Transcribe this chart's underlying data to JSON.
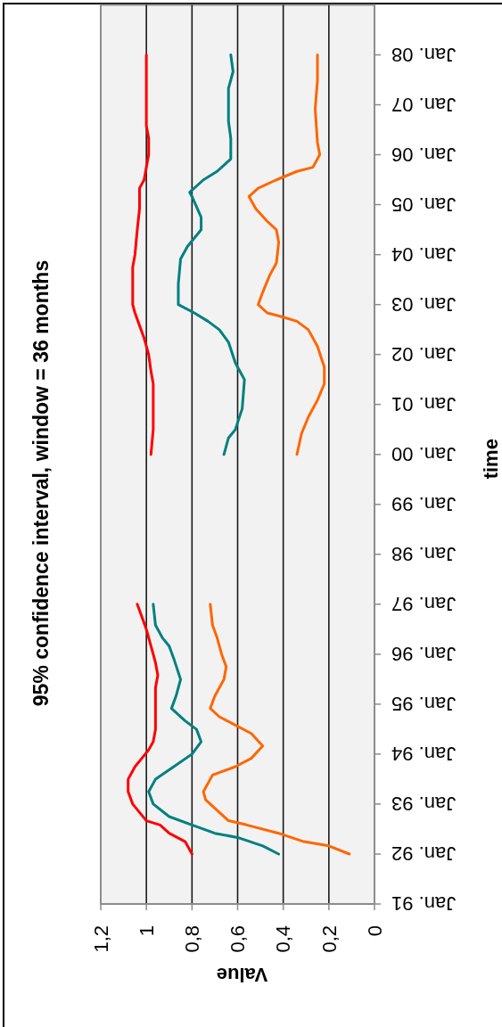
{
  "chart_data": {
    "type": "line",
    "orientation": "horizontal",
    "title": "95% confidence interval, window = 36 months",
    "xlabel": "Value",
    "ylabel": "time",
    "xlim": [
      1.2,
      0
    ],
    "xticks": [
      {
        "value": 1.2,
        "label": "1,2"
      },
      1,
      {
        "value": 0.8,
        "label": "0,8"
      },
      {
        "value": 0.6,
        "label": "0,6"
      },
      {
        "value": 0.4,
        "label": "0,4"
      },
      {
        "value": 0.2,
        "label": "0,2"
      },
      0
    ],
    "ylim": [
      "1991-01",
      "2009-01"
    ],
    "yticks": [
      {
        "value": "1991-01",
        "label": "Jan. 91"
      },
      {
        "value": "1992-01",
        "label": "Jan. 92"
      },
      {
        "value": "1993-01",
        "label": "Jan. 93"
      },
      {
        "value": "1994-01",
        "label": "Jan. 94"
      },
      {
        "value": "1995-01",
        "label": "Jan. 95"
      },
      {
        "value": "1996-01",
        "label": "Jan. 96"
      },
      {
        "value": "1997-01",
        "label": "Jan. 97"
      },
      {
        "value": "1998-01",
        "label": "Jan. 98"
      },
      {
        "value": "1999-01",
        "label": "Jan. 99"
      },
      {
        "value": "2000-01",
        "label": "Jan. 00"
      },
      {
        "value": "2001-01",
        "label": "Jan. 01"
      },
      {
        "value": "2002-01",
        "label": "Jan. 02"
      },
      {
        "value": "2003-01",
        "label": "Jan. 03"
      },
      {
        "value": "2004-01",
        "label": "Jan. 04"
      },
      {
        "value": "2005-01",
        "label": "Jan. 05"
      },
      {
        "value": "2006-01",
        "label": "Jan. 06"
      },
      {
        "value": "2007-01",
        "label": "Jan. 07"
      },
      {
        "value": "2008-01",
        "label": "Jan. 08"
      }
    ],
    "grid": "x",
    "series": [
      {
        "color": "#ff0000",
        "x": [
          "1992-01",
          "1992-04",
          "1992-06",
          "1992-08",
          "1992-09",
          "1993-01",
          "1993-04",
          "1993-07",
          "1993-10",
          "1993-12",
          "1994-02",
          "1994-04",
          "1994-07",
          "1995-05",
          "1995-08",
          "1995-11",
          "1996-03",
          "1996-07",
          "1996-10",
          "1997-01",
          "1998-07",
          "2000-01",
          "2000-07",
          "2000-09",
          "2001-06",
          "2001-09",
          "2002-01",
          "2002-05",
          "2002-08",
          "2002-11",
          "2003-01",
          "2003-10",
          "2004-01",
          "2004-07",
          "2004-12",
          "2005-05",
          "2005-07",
          "2005-10",
          "2006-01",
          "2006-05",
          "2006-08",
          "2006-10",
          "2008-01"
        ],
        "values": [
          0.8,
          0.83,
          0.9,
          0.94,
          1.0,
          1.06,
          1.08,
          1.08,
          1.05,
          1.02,
          0.99,
          0.97,
          0.96,
          0.96,
          0.95,
          0.96,
          0.98,
          1.0,
          1.02,
          1.04,
          null,
          0.98,
          0.97,
          0.97,
          0.97,
          0.98,
          0.99,
          1.01,
          1.03,
          1.05,
          1.06,
          1.06,
          1.05,
          1.04,
          1.03,
          1.03,
          1.01,
          1.0,
          0.99,
          0.99,
          1.0,
          1.0,
          1.0
        ]
      },
      {
        "color": "#008080",
        "x": [
          "1992-01",
          "1992-03",
          "1992-05",
          "1992-06",
          "1992-08",
          "1992-10",
          "1993-01",
          "1993-04",
          "1993-07",
          "1993-10",
          "1994-01",
          "1994-04",
          "1994-07",
          "1994-09",
          "1994-12",
          "1995-03",
          "1995-07",
          "1995-12",
          "1996-03",
          "1996-05",
          "1996-08",
          "1997-01",
          "1998-07",
          "2000-01",
          "2000-05",
          "2000-07",
          "2000-12",
          "2001-07",
          "2001-11",
          "2002-04",
          "2002-07",
          "2002-09",
          "2002-11",
          "2003-01",
          "2003-06",
          "2003-12",
          "2004-03",
          "2004-07",
          "2004-10",
          "2005-03",
          "2005-04",
          "2005-07",
          "2005-09",
          "2005-12",
          "2006-05",
          "2006-09",
          "2007-05",
          "2007-09",
          "2008-01"
        ],
        "values": [
          0.42,
          0.49,
          0.6,
          0.7,
          0.8,
          0.9,
          0.97,
          0.99,
          0.96,
          0.88,
          0.8,
          0.76,
          0.78,
          0.83,
          0.89,
          0.87,
          0.85,
          0.88,
          0.9,
          0.93,
          0.96,
          0.97,
          null,
          0.66,
          0.64,
          0.61,
          0.58,
          0.57,
          0.61,
          0.64,
          0.68,
          0.73,
          0.79,
          0.86,
          0.86,
          0.85,
          0.82,
          0.76,
          0.76,
          0.8,
          0.81,
          0.75,
          0.69,
          0.63,
          0.63,
          0.64,
          0.64,
          0.62,
          0.63
        ]
      },
      {
        "color": "#ff6600",
        "x": [
          "1992-01",
          "1992-03",
          "1992-04",
          "1992-06",
          "1992-08",
          "1992-09",
          "1992-12",
          "1993-02",
          "1993-04",
          "1993-08",
          "1993-10",
          "1993-12",
          "1994-03",
          "1994-06",
          "1994-08",
          "1994-10",
          "1994-12",
          "1995-03",
          "1995-07",
          "1995-10",
          "1996-01",
          "1996-05",
          "1996-08",
          "1997-01",
          "1998-07",
          "2000-01",
          "2000-06",
          "2000-10",
          "2001-02",
          "2001-06",
          "2001-10",
          "2002-03",
          "2002-07",
          "2002-09",
          "2002-10",
          "2002-11",
          "2003-01",
          "2003-04",
          "2003-08",
          "2003-11",
          "2004-04",
          "2004-07",
          "2004-09",
          "2004-12",
          "2005-03",
          "2005-05",
          "2005-07",
          "2005-09",
          "2005-10",
          "2006-01",
          "2006-04",
          "2006-12",
          "2007-07",
          "2008-01"
        ],
        "values": [
          0.11,
          0.2,
          0.31,
          0.42,
          0.56,
          0.64,
          0.7,
          0.74,
          0.75,
          0.71,
          0.61,
          0.54,
          0.49,
          0.54,
          0.61,
          0.68,
          0.72,
          0.7,
          0.66,
          0.65,
          0.67,
          0.69,
          0.71,
          0.72,
          null,
          0.34,
          0.32,
          0.29,
          0.25,
          0.22,
          0.22,
          0.25,
          0.29,
          0.34,
          0.4,
          0.47,
          0.51,
          0.49,
          0.46,
          0.43,
          0.42,
          0.43,
          0.47,
          0.52,
          0.55,
          0.51,
          0.43,
          0.34,
          0.27,
          0.24,
          0.25,
          0.26,
          0.25,
          0.25
        ]
      }
    ]
  }
}
